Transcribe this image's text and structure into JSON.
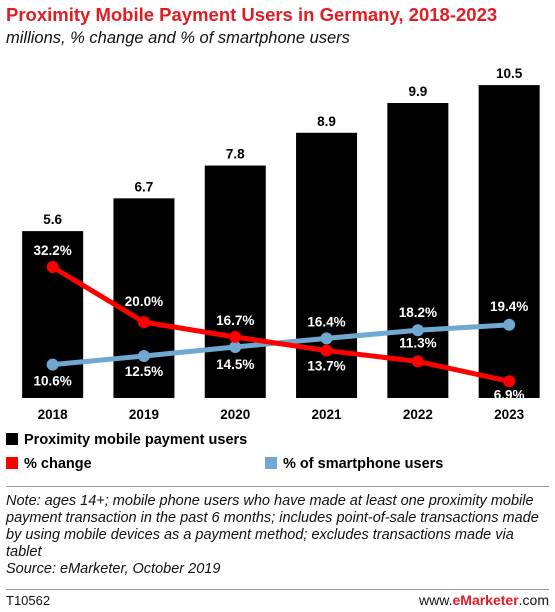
{
  "chart_data": {
    "type": "bar",
    "title": "Proximity Mobile Payment Users in Germany, 2018-2023",
    "subtitle": "millions, % change and % of smartphone users",
    "categories": [
      "2018",
      "2019",
      "2020",
      "2021",
      "2022",
      "2023"
    ],
    "series": [
      {
        "name": "Proximity mobile payment users",
        "type": "bar",
        "values": [
          5.6,
          6.7,
          7.8,
          8.9,
          9.9,
          10.5
        ],
        "labels": [
          "5.6",
          "6.7",
          "7.8",
          "8.9",
          "9.9",
          "10.5"
        ],
        "color": "#000000"
      },
      {
        "name": "% change",
        "type": "line",
        "values": [
          32.2,
          20.0,
          16.7,
          13.7,
          11.3,
          6.9
        ],
        "labels": [
          "32.2%",
          "20.0%",
          "16.7%",
          "13.7%",
          "11.3%",
          "6.9%"
        ],
        "color": "#ff0000"
      },
      {
        "name": "% of smartphone users",
        "type": "line",
        "values": [
          10.6,
          12.5,
          14.5,
          16.4,
          18.2,
          19.4
        ],
        "labels": [
          "10.6%",
          "12.5%",
          "14.5%",
          "16.4%",
          "18.2%",
          "19.4%"
        ],
        "color": "#6fa8d1"
      }
    ],
    "legend_position": "bottom",
    "grid": false
  },
  "note": "Note: ages 14+; mobile phone users who have made at least one proximity mobile payment transaction in the past 6 months; includes point-of-sale transactions made by using mobile devices as a payment method; excludes transactions made via tablet",
  "source": "Source: eMarketer, October 2019",
  "chart_id": "T10562",
  "brand": {
    "prefix": "www.",
    "name": "eMarketer",
    "suffix": ".com"
  }
}
